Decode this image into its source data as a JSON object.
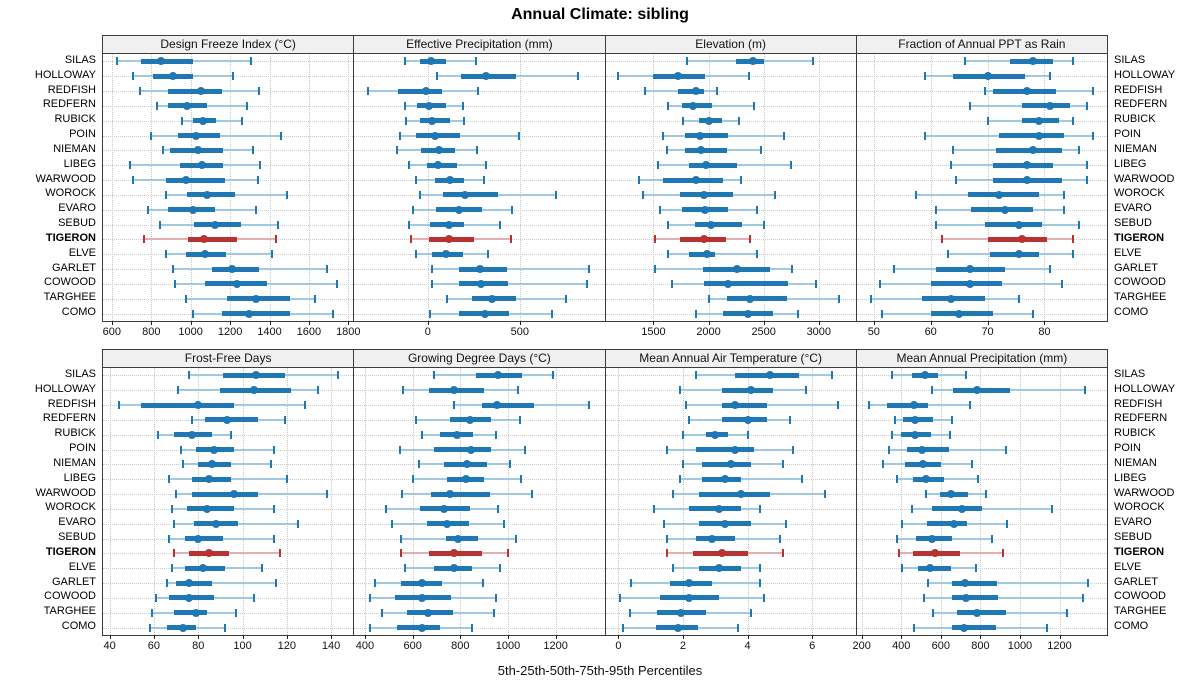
{
  "title": "Annual Climate: sibling",
  "caption": "5th-25th-50th-75th-95th Percentiles",
  "highlight_station": "TIGERON",
  "colors": {
    "series": "#1f77b4",
    "series_light": "#a3c8e2",
    "highlight": "#b93232",
    "highlight_light": "#e3afaf",
    "header_bg": "#f0f0f0",
    "grid": "#c8c8c8",
    "panel_border": "#3c3c3c"
  },
  "stations": [
    "SILAS",
    "HOLLOWAY",
    "REDFISH",
    "REDFERN",
    "RUBICK",
    "POIN",
    "NIEMAN",
    "LIBEG",
    "WARWOOD",
    "WOROCK",
    "EVARO",
    "SEBUD",
    "TIGERON",
    "ELVE",
    "GARLET",
    "COWOOD",
    "TARGHEE",
    "COMO"
  ],
  "chart_data": {
    "type": "dotplot-percentiles",
    "percentiles": [
      5,
      25,
      50,
      75,
      95
    ],
    "legend": "5th-25th-50th-75th-95th Percentiles",
    "grid": "dotted",
    "panels": [
      {
        "title": "Design Freeze Index (°C)",
        "row": 0,
        "xlim": [
          555,
          1825
        ],
        "ticks": [
          600,
          800,
          1000,
          1200,
          1400,
          1600,
          1800
        ],
        "values": [
          [
            625,
            750,
            850,
            1010,
            1305
          ],
          [
            705,
            810,
            910,
            1010,
            1215
          ],
          [
            745,
            885,
            1050,
            1160,
            1345
          ],
          [
            830,
            885,
            980,
            1085,
            1285
          ],
          [
            955,
            1010,
            1065,
            1130,
            1260
          ],
          [
            800,
            935,
            1025,
            1150,
            1460
          ],
          [
            860,
            895,
            1035,
            1165,
            1315
          ],
          [
            690,
            945,
            1055,
            1165,
            1350
          ],
          [
            705,
            875,
            975,
            1175,
            1340
          ],
          [
            875,
            980,
            1085,
            1225,
            1490
          ],
          [
            785,
            885,
            1010,
            1125,
            1330
          ],
          [
            845,
            1015,
            1125,
            1255,
            1445
          ],
          [
            765,
            985,
            1070,
            1235,
            1435
          ],
          [
            875,
            975,
            1075,
            1180,
            1415
          ],
          [
            910,
            1110,
            1210,
            1345,
            1690
          ],
          [
            920,
            1075,
            1235,
            1385,
            1745
          ],
          [
            975,
            1185,
            1330,
            1505,
            1630
          ],
          [
            1010,
            1160,
            1295,
            1505,
            1720
          ]
        ]
      },
      {
        "title": "Effective Precipitation (mm)",
        "row": 0,
        "xlim": [
          -400,
          960
        ],
        "ticks": [
          0,
          500
        ],
        "values": [
          [
            -125,
            -40,
            15,
            100,
            260
          ],
          [
            50,
            180,
            315,
            480,
            815
          ],
          [
            -325,
            -160,
            -10,
            75,
            275
          ],
          [
            -125,
            -60,
            5,
            100,
            190
          ],
          [
            -120,
            -40,
            25,
            120,
            195
          ],
          [
            -150,
            -65,
            40,
            175,
            495
          ],
          [
            -165,
            -35,
            60,
            150,
            265
          ],
          [
            -105,
            -5,
            55,
            160,
            315
          ],
          [
            -65,
            40,
            120,
            195,
            305
          ],
          [
            -40,
            80,
            200,
            380,
            695
          ],
          [
            -80,
            45,
            170,
            295,
            455
          ],
          [
            -100,
            10,
            115,
            195,
            390
          ],
          [
            -90,
            5,
            115,
            250,
            450
          ],
          [
            -65,
            20,
            100,
            190,
            325
          ],
          [
            25,
            170,
            285,
            430,
            875
          ],
          [
            20,
            170,
            290,
            435,
            865
          ],
          [
            105,
            240,
            350,
            480,
            750
          ],
          [
            10,
            170,
            310,
            440,
            675
          ]
        ]
      },
      {
        "title": "Elevation (m)",
        "row": 0,
        "xlim": [
          1065,
          3335
        ],
        "ticks": [
          1500,
          2000,
          2500,
          3000
        ],
        "values": [
          [
            1800,
            2250,
            2400,
            2500,
            2950
          ],
          [
            1180,
            1500,
            1720,
            1970,
            2365
          ],
          [
            1425,
            1725,
            1890,
            1955,
            2075
          ],
          [
            1630,
            1755,
            1855,
            2030,
            2410
          ],
          [
            1765,
            1910,
            2000,
            2120,
            2275
          ],
          [
            1590,
            1790,
            1920,
            2180,
            2680
          ],
          [
            1620,
            1790,
            1935,
            2165,
            2475
          ],
          [
            1545,
            1820,
            1980,
            2255,
            2745
          ],
          [
            1365,
            1590,
            1890,
            2135,
            2290
          ],
          [
            1405,
            1745,
            1955,
            2225,
            2600
          ],
          [
            1555,
            1760,
            1970,
            2180,
            2440
          ],
          [
            1635,
            1880,
            2020,
            2300,
            2500
          ],
          [
            1515,
            1745,
            1955,
            2155,
            2380
          ],
          [
            1635,
            1820,
            1990,
            2060,
            2435
          ],
          [
            1515,
            1945,
            2255,
            2555,
            2755
          ],
          [
            1665,
            1955,
            2180,
            2725,
            2970
          ],
          [
            2000,
            2165,
            2380,
            2710,
            3180
          ],
          [
            1890,
            2135,
            2355,
            2580,
            2810
          ]
        ]
      },
      {
        "title": "Fraction of Annual PPT as Rain",
        "row": 0,
        "xlim": [
          47,
          91
        ],
        "ticks": [
          50,
          60,
          70,
          80
        ],
        "values": [
          [
            66,
            74,
            78,
            81.5,
            85
          ],
          [
            59,
            64,
            70,
            76.5,
            81
          ],
          [
            69.5,
            71,
            77,
            82,
            88.5
          ],
          [
            67,
            76,
            81,
            84.5,
            87.5
          ],
          [
            70,
            76,
            79,
            82.5,
            85
          ],
          [
            59,
            72,
            79,
            83.5,
            88.5
          ],
          [
            64,
            71.5,
            78,
            83,
            86
          ],
          [
            63.5,
            71,
            77,
            81.5,
            87.5
          ],
          [
            64.5,
            71,
            77,
            83,
            87.5
          ],
          [
            57.5,
            66.5,
            72,
            79,
            83.5
          ],
          [
            61,
            67,
            73,
            78,
            83.5
          ],
          [
            61,
            69.5,
            75.5,
            79.5,
            86
          ],
          [
            62,
            70,
            76,
            80.5,
            85
          ],
          [
            63,
            70.5,
            75.5,
            79,
            85
          ],
          [
            53.5,
            61,
            67,
            73,
            81
          ],
          [
            51,
            60,
            67,
            72.5,
            83
          ],
          [
            49.5,
            58.5,
            63.5,
            69.5,
            75.5
          ],
          [
            51.5,
            60,
            65,
            71,
            78
          ]
        ]
      },
      {
        "title": "Frost-Free Days",
        "row": 1,
        "xlim": [
          37,
          150
        ],
        "ticks": [
          40,
          60,
          80,
          100,
          120,
          140
        ],
        "values": [
          [
            76,
            91,
            106,
            119,
            143
          ],
          [
            71,
            90,
            105,
            122,
            134
          ],
          [
            44,
            54,
            80,
            96,
            128
          ],
          [
            77,
            83,
            93,
            107,
            119
          ],
          [
            62,
            69,
            77,
            86,
            95
          ],
          [
            72,
            79,
            87,
            96,
            114
          ],
          [
            73,
            80,
            86,
            95,
            113
          ],
          [
            67,
            77,
            85,
            95,
            120
          ],
          [
            70,
            77,
            96,
            107,
            138
          ],
          [
            68,
            75,
            84,
            96,
            114
          ],
          [
            69,
            78,
            88,
            98,
            125
          ],
          [
            67,
            74,
            80,
            91,
            114
          ],
          [
            69,
            76,
            85,
            94,
            117
          ],
          [
            68,
            74,
            82,
            92,
            109
          ],
          [
            66,
            70,
            76,
            86,
            115
          ],
          [
            61,
            67,
            76,
            87,
            105
          ],
          [
            59,
            69,
            79,
            84,
            97
          ],
          [
            58,
            66,
            73,
            79,
            92
          ]
        ]
      },
      {
        "title": "Growing Degree Days (°C)",
        "row": 1,
        "xlim": [
          355,
          1405
        ],
        "ticks": [
          400,
          600,
          800,
          1000,
          1200
        ],
        "values": [
          [
            690,
            865,
            960,
            1060,
            1190
          ],
          [
            560,
            670,
            775,
            900,
            1040
          ],
          [
            775,
            890,
            955,
            1110,
            1340
          ],
          [
            615,
            755,
            840,
            930,
            1050
          ],
          [
            640,
            715,
            785,
            855,
            950
          ],
          [
            545,
            690,
            845,
            930,
            1070
          ],
          [
            625,
            730,
            830,
            910,
            1010
          ],
          [
            600,
            745,
            825,
            900,
            1055
          ],
          [
            555,
            675,
            755,
            925,
            1100
          ],
          [
            490,
            630,
            730,
            840,
            960
          ],
          [
            515,
            660,
            745,
            835,
            985
          ],
          [
            550,
            740,
            790,
            875,
            1035
          ],
          [
            550,
            670,
            775,
            890,
            1000
          ],
          [
            570,
            690,
            775,
            850,
            965
          ],
          [
            440,
            550,
            640,
            725,
            895
          ],
          [
            420,
            525,
            640,
            760,
            950
          ],
          [
            470,
            575,
            665,
            770,
            940
          ],
          [
            420,
            535,
            640,
            715,
            850
          ]
        ]
      },
      {
        "title": "Mean Annual Air Temperature (°C)",
        "row": 1,
        "xlim": [
          -0.4,
          7.35
        ],
        "ticks": [
          0,
          2,
          4,
          6
        ],
        "values": [
          [
            2.4,
            3.6,
            4.7,
            5.6,
            6.6
          ],
          [
            1.9,
            3.2,
            4.1,
            4.8,
            5.8
          ],
          [
            2.1,
            3.2,
            3.6,
            4.6,
            6.8
          ],
          [
            2.2,
            3.2,
            4.0,
            4.6,
            5.3
          ],
          [
            2.0,
            2.7,
            3.0,
            3.4,
            4.0
          ],
          [
            1.5,
            2.4,
            3.6,
            4.2,
            5.4
          ],
          [
            2.0,
            2.6,
            3.5,
            4.1,
            5.1
          ],
          [
            1.9,
            2.6,
            3.3,
            3.8,
            5.7
          ],
          [
            1.7,
            2.5,
            3.8,
            4.7,
            6.4
          ],
          [
            1.1,
            2.2,
            3.1,
            3.8,
            4.4
          ],
          [
            1.4,
            2.5,
            3.3,
            4.1,
            5.2
          ],
          [
            1.5,
            2.4,
            2.9,
            3.6,
            5.0
          ],
          [
            1.5,
            2.3,
            3.2,
            4.0,
            5.1
          ],
          [
            1.7,
            2.5,
            3.1,
            3.8,
            4.4
          ],
          [
            0.4,
            1.6,
            2.2,
            2.9,
            4.4
          ],
          [
            0.05,
            1.3,
            2.2,
            3.1,
            4.5
          ],
          [
            0.35,
            1.2,
            1.95,
            2.7,
            4.1
          ],
          [
            0.15,
            1.15,
            1.85,
            2.45,
            3.7
          ]
        ]
      },
      {
        "title": "Mean Annual Precipitation (mm)",
        "row": 1,
        "xlim": [
          175,
          1440
        ],
        "ticks": [
          200,
          400,
          600,
          800,
          1000,
          1200
        ],
        "values": [
          [
            355,
            455,
            520,
            585,
            725
          ],
          [
            555,
            660,
            785,
            950,
            1330
          ],
          [
            235,
            330,
            465,
            535,
            745
          ],
          [
            370,
            410,
            470,
            560,
            655
          ],
          [
            355,
            400,
            470,
            550,
            645
          ],
          [
            340,
            430,
            505,
            640,
            930
          ],
          [
            310,
            420,
            510,
            600,
            760
          ],
          [
            380,
            460,
            525,
            615,
            790
          ],
          [
            525,
            595,
            650,
            735,
            830
          ],
          [
            455,
            555,
            705,
            810,
            1160
          ],
          [
            405,
            530,
            665,
            730,
            935
          ],
          [
            380,
            475,
            555,
            655,
            860
          ],
          [
            390,
            460,
            570,
            695,
            915
          ],
          [
            405,
            485,
            545,
            650,
            780
          ],
          [
            535,
            655,
            720,
            885,
            1345
          ],
          [
            515,
            655,
            725,
            890,
            1320
          ],
          [
            560,
            680,
            785,
            930,
            1240
          ],
          [
            465,
            655,
            715,
            880,
            1135
          ]
        ]
      }
    ]
  }
}
